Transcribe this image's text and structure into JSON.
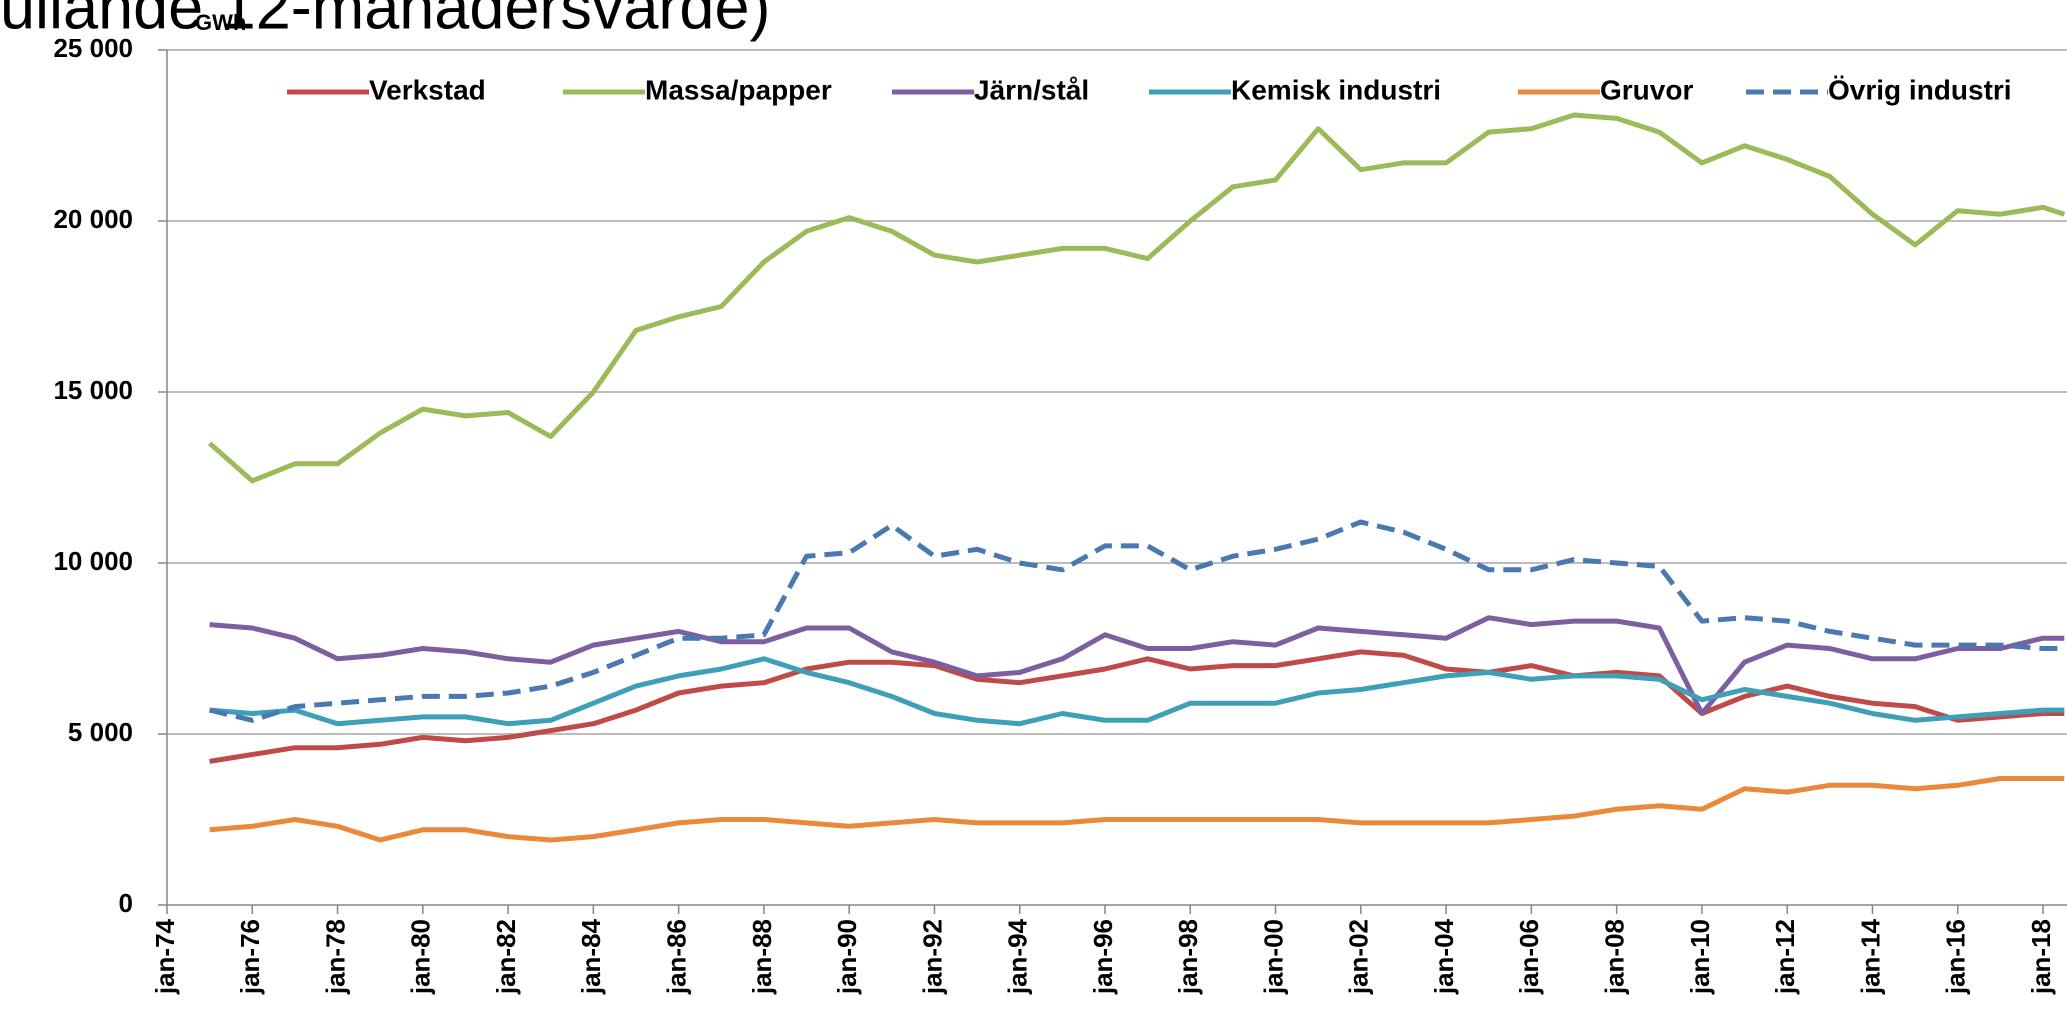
{
  "chart_data": {
    "type": "line",
    "title": "ullande 12-månadersvärde)",
    "y_label": "GWh",
    "x": [
      "1975-01",
      "1976-01",
      "1977-01",
      "1978-01",
      "1979-01",
      "1980-01",
      "1981-01",
      "1982-01",
      "1983-01",
      "1984-01",
      "1985-01",
      "1986-01",
      "1987-01",
      "1988-01",
      "1989-01",
      "1990-01",
      "1991-01",
      "1992-01",
      "1993-01",
      "1994-01",
      "1995-01",
      "1996-01",
      "1997-01",
      "1998-01",
      "1999-01",
      "2000-01",
      "2001-01",
      "2002-01",
      "2003-01",
      "2004-01",
      "2005-01",
      "2006-01",
      "2007-01",
      "2008-01",
      "2009-01",
      "2010-01",
      "2011-01",
      "2012-01",
      "2013-01",
      "2014-01",
      "2015-01",
      "2016-01",
      "2017-01",
      "2018-01",
      "2018-07"
    ],
    "series": [
      {
        "name": "Verkstad",
        "color": "#be4b48",
        "dash": false,
        "values": [
          4200,
          4400,
          4600,
          4600,
          4700,
          4900,
          4800,
          4900,
          5100,
          5300,
          5700,
          6200,
          6400,
          6500,
          6900,
          7100,
          7100,
          7000,
          6600,
          6500,
          6700,
          6900,
          7200,
          6900,
          7000,
          7000,
          7200,
          7400,
          7300,
          6900,
          6800,
          7000,
          6700,
          6800,
          6700,
          5600,
          6100,
          6400,
          6100,
          5900,
          5800,
          5400,
          5500,
          5600,
          5600
        ]
      },
      {
        "name": "Massa/papper",
        "color": "#9bbb59",
        "dash": false,
        "values": [
          13500,
          12400,
          12900,
          12900,
          13800,
          14500,
          14300,
          14400,
          13700,
          15000,
          16800,
          17200,
          17500,
          18800,
          19700,
          20100,
          19700,
          19000,
          18800,
          19000,
          19200,
          19200,
          18900,
          20000,
          21000,
          21200,
          22700,
          21500,
          21700,
          21700,
          22600,
          22700,
          23100,
          23000,
          22600,
          21700,
          22200,
          21800,
          21300,
          20200,
          19300,
          20300,
          20200,
          20400,
          20200
        ]
      },
      {
        "name": "Järn/stål",
        "color": "#7d5fa0",
        "dash": false,
        "values": [
          8200,
          8100,
          7800,
          7200,
          7300,
          7500,
          7400,
          7200,
          7100,
          7600,
          7800,
          8000,
          7700,
          7700,
          8100,
          8100,
          7400,
          7100,
          6700,
          6800,
          7200,
          7900,
          7500,
          7500,
          7700,
          7600,
          8100,
          8000,
          7900,
          7800,
          8400,
          8200,
          8300,
          8300,
          8100,
          5600,
          7100,
          7600,
          7500,
          7200,
          7200,
          7500,
          7500,
          7800,
          7800
        ]
      },
      {
        "name": "Kemisk industri",
        "color": "#3f9fb8",
        "dash": false,
        "values": [
          5700,
          5600,
          5700,
          5300,
          5400,
          5500,
          5500,
          5300,
          5400,
          5900,
          6400,
          6700,
          6900,
          7200,
          6800,
          6500,
          6100,
          5600,
          5400,
          5300,
          5600,
          5400,
          5400,
          5900,
          5900,
          5900,
          6200,
          6300,
          6500,
          6700,
          6800,
          6600,
          6700,
          6700,
          6600,
          6000,
          6300,
          6100,
          5900,
          5600,
          5400,
          5500,
          5600,
          5700,
          5700
        ]
      },
      {
        "name": "Gruvor",
        "color": "#e8893c",
        "dash": false,
        "values": [
          2200,
          2300,
          2500,
          2300,
          1900,
          2200,
          2200,
          2000,
          1900,
          2000,
          2200,
          2400,
          2500,
          2500,
          2400,
          2300,
          2400,
          2500,
          2400,
          2400,
          2400,
          2500,
          2500,
          2500,
          2500,
          2500,
          2500,
          2400,
          2400,
          2400,
          2400,
          2500,
          2600,
          2800,
          2900,
          2800,
          3400,
          3300,
          3500,
          3500,
          3400,
          3500,
          3700,
          3700,
          3700
        ]
      },
      {
        "name": "Övrig industri",
        "color": "#4a78b0",
        "dash": true,
        "values": [
          5700,
          5400,
          5800,
          5900,
          6000,
          6100,
          6100,
          6200,
          6400,
          6800,
          7300,
          7800,
          7800,
          7900,
          10200,
          10300,
          11100,
          10200,
          10400,
          10000,
          9800,
          10500,
          10500,
          9800,
          10200,
          10400,
          10700,
          11200,
          10900,
          10400,
          9800,
          9800,
          10100,
          10000,
          9900,
          8300,
          8400,
          8300,
          8000,
          7800,
          7600,
          7600,
          7600,
          7500,
          7500
        ]
      }
    ],
    "xlim": [
      "1974-01",
      "2018-08"
    ],
    "xticks": [
      {
        "value": "1974-01",
        "label": "jan-74"
      },
      {
        "value": "1976-01",
        "label": "jan-76"
      },
      {
        "value": "1978-01",
        "label": "jan-78"
      },
      {
        "value": "1980-01",
        "label": "jan-80"
      },
      {
        "value": "1982-01",
        "label": "jan-82"
      },
      {
        "value": "1984-01",
        "label": "jan-84"
      },
      {
        "value": "1986-01",
        "label": "jan-86"
      },
      {
        "value": "1988-01",
        "label": "jan-88"
      },
      {
        "value": "1990-01",
        "label": "jan-90"
      },
      {
        "value": "1992-01",
        "label": "jan-92"
      },
      {
        "value": "1994-01",
        "label": "jan-94"
      },
      {
        "value": "1996-01",
        "label": "jan-96"
      },
      {
        "value": "1998-01",
        "label": "jan-98"
      },
      {
        "value": "2000-01",
        "label": "jan-00"
      },
      {
        "value": "2002-01",
        "label": "jan-02"
      },
      {
        "value": "2004-01",
        "label": "jan-04"
      },
      {
        "value": "2006-01",
        "label": "jan-06"
      },
      {
        "value": "2008-01",
        "label": "jan-08"
      },
      {
        "value": "2010-01",
        "label": "jan-10"
      },
      {
        "value": "2012-01",
        "label": "jan-12"
      },
      {
        "value": "2014-01",
        "label": "jan-14"
      },
      {
        "value": "2016-01",
        "label": "jan-16"
      },
      {
        "value": "2018-01",
        "label": "jan-18"
      }
    ],
    "ylim": [
      0,
      25000
    ],
    "yticks": [
      0,
      {
        "value": 5000,
        "label": "5 000"
      },
      {
        "value": 10000,
        "label": "10 000"
      },
      {
        "value": 15000,
        "label": "15 000"
      },
      {
        "value": 20000,
        "label": "20 000"
      },
      {
        "value": 25000,
        "label": "25 000"
      }
    ],
    "grid": true,
    "legend": "top"
  }
}
